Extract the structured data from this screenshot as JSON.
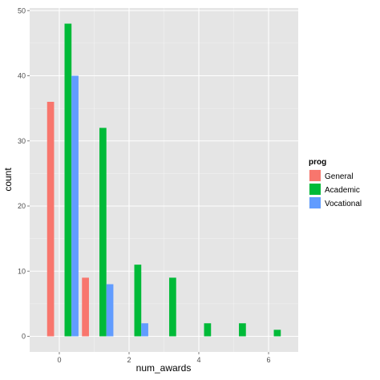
{
  "chart_data": {
    "type": "bar",
    "x": [
      0,
      1,
      2,
      3,
      4,
      5,
      6
    ],
    "x_ticks": [
      0,
      2,
      4,
      6
    ],
    "y_ticks": [
      0,
      10,
      20,
      30,
      40,
      50
    ],
    "xlim": [
      -0.85,
      6.85
    ],
    "ylim": [
      -2.4,
      50.4
    ],
    "xlabel": "num_awards",
    "ylabel": "count",
    "legend_title": "prog",
    "legend_position": "right",
    "grid": true,
    "series": [
      {
        "name": "General",
        "color": "#f8766d",
        "offset": -0.25,
        "values": [
          36,
          9,
          0,
          0,
          0,
          0,
          0
        ]
      },
      {
        "name": "Academic",
        "color": "#00ba38",
        "offset": 0.25,
        "values": [
          48,
          32,
          11,
          9,
          2,
          2,
          1
        ]
      },
      {
        "name": "Vocational",
        "color": "#619cff",
        "offset": 0.45,
        "values": [
          40,
          8,
          2,
          0,
          0,
          0,
          0
        ]
      }
    ]
  },
  "style": {
    "panel_background": "#e5e5e5",
    "gridline_major": "#ffffff",
    "gridline_minor": "#f2f2f2"
  }
}
